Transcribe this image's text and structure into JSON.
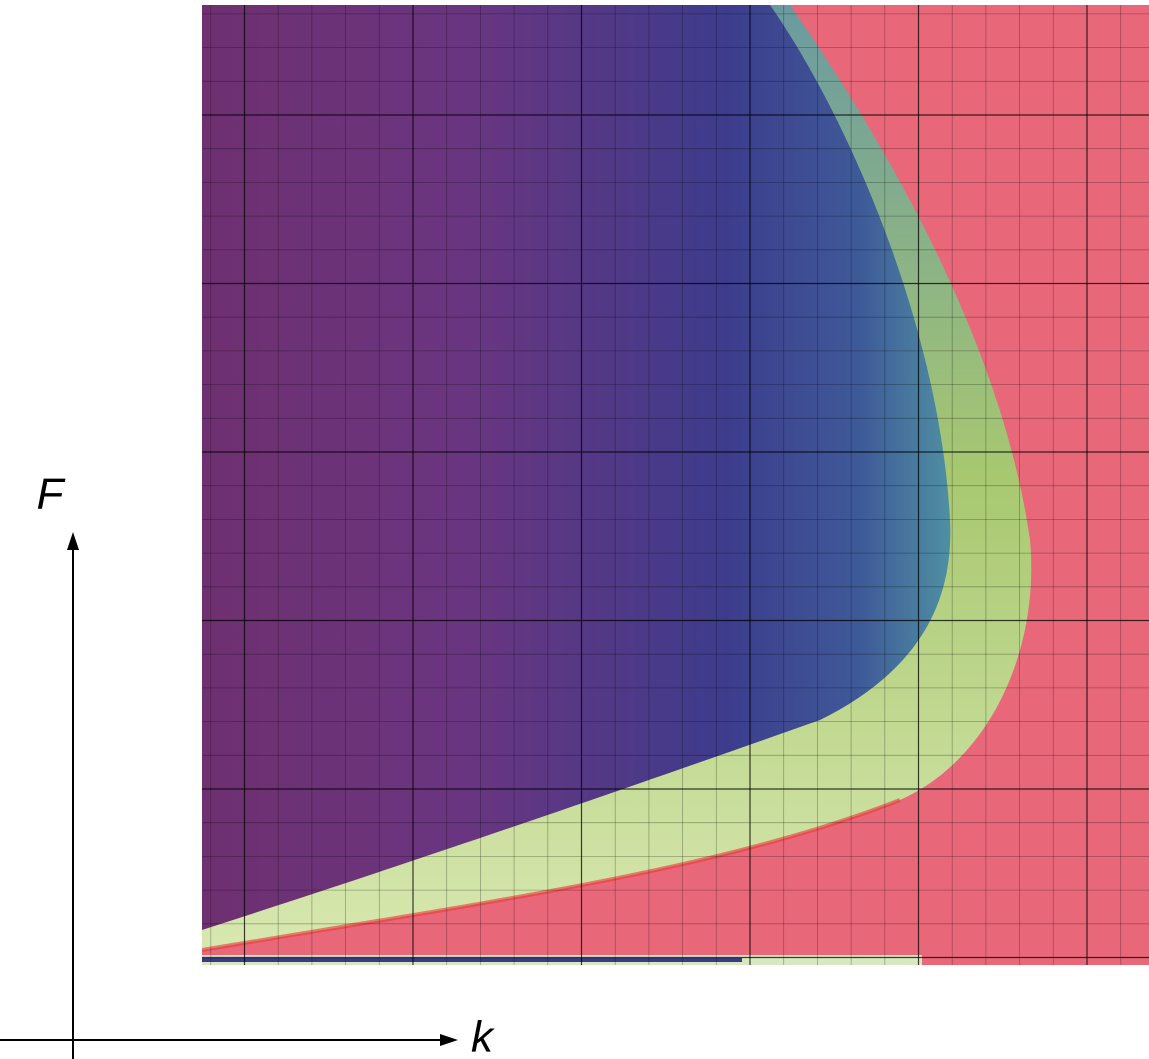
{
  "axes": {
    "y_label": "F",
    "x_label": "k"
  }
}
